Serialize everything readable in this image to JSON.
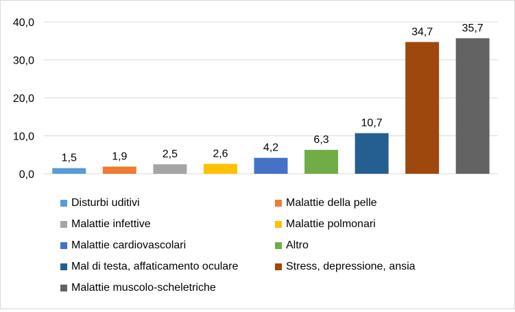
{
  "chart_data": {
    "type": "bar",
    "title": "",
    "xlabel": "",
    "ylabel": "",
    "ylim": [
      0,
      40
    ],
    "yticks": [
      "0,0",
      "10,0",
      "20,0",
      "30,0",
      "40,0"
    ],
    "grid": true,
    "legend_position": "bottom",
    "categories": [
      "Disturbi uditivi",
      "Malattie della pelle",
      "Malattie infettive",
      "Malattie polmonari",
      "Malattie cardiovascolari",
      "Altro",
      "Mal di testa, affaticamento oculare",
      "Stress, depressione, ansia",
      "Malattie muscolo-scheletriche"
    ],
    "values": [
      1.5,
      1.9,
      2.5,
      2.6,
      4.2,
      6.3,
      10.7,
      34.7,
      35.7
    ],
    "value_labels": [
      "1,5",
      "1,9",
      "2,5",
      "2,6",
      "4,2",
      "6,3",
      "10,7",
      "34,7",
      "35,7"
    ],
    "colors": [
      "#5b9bd5",
      "#ed7d31",
      "#a5a5a5",
      "#ffc000",
      "#4472c4",
      "#70ad47",
      "#255e91",
      "#9e480e",
      "#636363"
    ]
  }
}
